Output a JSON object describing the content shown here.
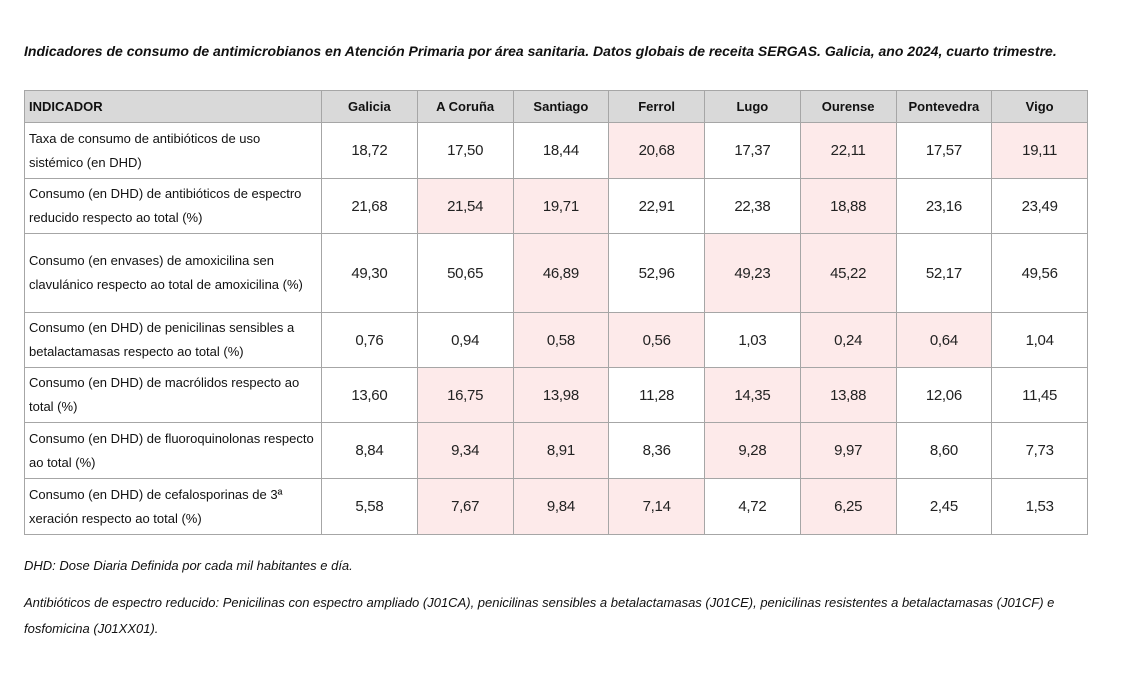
{
  "title": "Indicadores de consumo de antimicrobianos en Atención Primaria por área sanitaria. Datos globais de receita SERGAS. Galicia, ano 2024, cuarto trimestre.",
  "highlight_color": "#fdeaea",
  "table": {
    "headers": [
      "INDICADOR",
      "Galicia",
      "A Coruña",
      "Santiago",
      "Ferrol",
      "Lugo",
      "Ourense",
      "Pontevedra",
      "Vigo"
    ],
    "rows": [
      {
        "label": "Taxa de consumo de antibióticos de uso sistémico (en DHD)",
        "values": [
          "18,72",
          "17,50",
          "18,44",
          "20,68",
          "17,37",
          "22,11",
          "17,57",
          "19,11"
        ],
        "highlighted": [
          false,
          false,
          false,
          true,
          false,
          true,
          false,
          true
        ]
      },
      {
        "label": "Consumo (en DHD) de antibióticos de espectro reducido respecto ao total (%)",
        "values": [
          "21,68",
          "21,54",
          "19,71",
          "22,91",
          "22,38",
          "18,88",
          "23,16",
          "23,49"
        ],
        "highlighted": [
          false,
          true,
          true,
          false,
          false,
          true,
          false,
          false
        ]
      },
      {
        "label": "Consumo (en envases) de amoxicilina sen clavulánico respecto ao total de amoxicilina (%)",
        "values": [
          "49,30",
          "50,65",
          "46,89",
          "52,96",
          "49,23",
          "45,22",
          "52,17",
          "49,56"
        ],
        "highlighted": [
          false,
          false,
          true,
          false,
          true,
          true,
          false,
          false
        ]
      },
      {
        "label": "Consumo (en DHD) de penicilinas sensibles a betalactamasas respecto ao total (%)",
        "values": [
          "0,76",
          "0,94",
          "0,58",
          "0,56",
          "1,03",
          "0,24",
          "0,64",
          "1,04"
        ],
        "highlighted": [
          false,
          false,
          true,
          true,
          false,
          true,
          true,
          false
        ]
      },
      {
        "label": "Consumo (en DHD) de macrólidos respecto ao total (%)",
        "values": [
          "13,60",
          "16,75",
          "13,98",
          "11,28",
          "14,35",
          "13,88",
          "12,06",
          "11,45"
        ],
        "highlighted": [
          false,
          true,
          true,
          false,
          true,
          true,
          false,
          false
        ]
      },
      {
        "label": "Consumo (en DHD) de fluoroquinolonas respecto ao total (%)",
        "values": [
          "8,84",
          "9,34",
          "8,91",
          "8,36",
          "9,28",
          "9,97",
          "8,60",
          "7,73"
        ],
        "highlighted": [
          false,
          true,
          true,
          false,
          true,
          true,
          false,
          false
        ]
      },
      {
        "label": "Consumo (en DHD) de cefalosporinas de 3ª xeración respecto ao total (%)",
        "values": [
          "5,58",
          "7,67",
          "9,84",
          "7,14",
          "4,72",
          "6,25",
          "2,45",
          "1,53"
        ],
        "highlighted": [
          false,
          true,
          true,
          true,
          false,
          true,
          false,
          false
        ]
      }
    ]
  },
  "notes": [
    "DHD: Dose Diaria Definida por cada mil habitantes e día.",
    "Antibióticos de espectro reducido: Penicilinas con espectro ampliado (J01CA), penicilinas sensibles a betalactamasas (J01CE), penicilinas resistentes a betalactamasas (J01CF) e fosfomicina (J01XX01)."
  ]
}
